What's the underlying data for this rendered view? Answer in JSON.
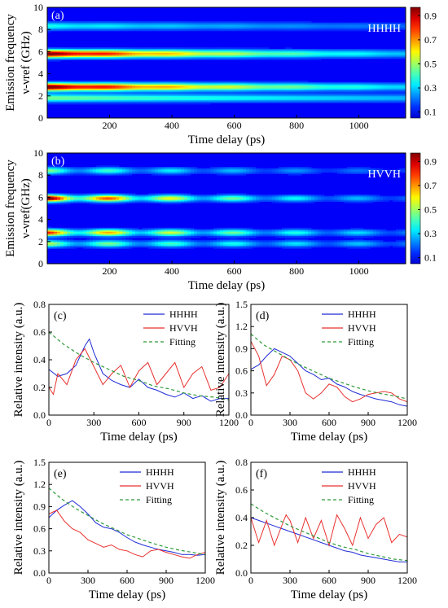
{
  "colorbar_ticks": [
    "0.9",
    "0.7",
    "0.5",
    "0.3",
    "0.1"
  ],
  "chart_data": [
    {
      "id": "a",
      "type": "heatmap",
      "panel_label": "(a)",
      "annotation": "HHHH",
      "xlabel": "Time delay (ps)",
      "ylabel_line1": "Emission frequency",
      "ylabel_line2": "ν-νref (GHz)",
      "xlim": [
        0,
        1150
      ],
      "ylim": [
        0,
        10
      ],
      "xticks": [
        200,
        400,
        600,
        800,
        1000
      ],
      "yticks": [
        0,
        2,
        4,
        6,
        8,
        10
      ],
      "bands": [
        {
          "freq": 1.8,
          "width": 0.35,
          "peak": 0.38,
          "decay": 0.0006,
          "mod": 0.0
        },
        {
          "freq": 2.8,
          "width": 0.35,
          "peak": 0.95,
          "decay": 0.0012,
          "mod": 0.1
        },
        {
          "freq": 5.8,
          "width": 0.35,
          "peak": 0.95,
          "decay": 0.0013,
          "mod": 0.1
        },
        {
          "freq": 8.3,
          "width": 0.35,
          "peak": 0.28,
          "decay": 0.0008,
          "mod": 0.1
        }
      ]
    },
    {
      "id": "b",
      "type": "heatmap",
      "panel_label": "(b)",
      "annotation": "HVVH",
      "xlabel": "Time delay (ps)",
      "ylabel_line1": "Emission frequency",
      "ylabel_line2": "ν-νref(GHz)",
      "xlim": [
        0,
        1150
      ],
      "ylim": [
        0,
        10
      ],
      "xticks": [
        200,
        400,
        600,
        800,
        1000
      ],
      "yticks": [
        0,
        2,
        4,
        6,
        8,
        10
      ],
      "bands": [
        {
          "freq": 1.8,
          "width": 0.3,
          "peak": 0.45,
          "decay": 0.0008,
          "mod": 0.6
        },
        {
          "freq": 2.8,
          "width": 0.3,
          "peak": 0.75,
          "decay": 0.0012,
          "mod": 0.6
        },
        {
          "freq": 5.9,
          "width": 0.3,
          "peak": 0.95,
          "decay": 0.0016,
          "mod": 0.6
        },
        {
          "freq": 8.4,
          "width": 0.3,
          "peak": 0.4,
          "decay": 0.0012,
          "mod": 0.6
        }
      ]
    },
    {
      "id": "c",
      "type": "line",
      "panel_label": "(c)",
      "xlabel": "Time delay (ps)",
      "ylabel": "Relative intensity (a.u.)",
      "xlim": [
        0,
        1200
      ],
      "ylim": [
        0,
        0.8
      ],
      "xticks": [
        0,
        300,
        600,
        900,
        1200
      ],
      "yticks": [
        "0.0",
        "0.2",
        "0.4",
        "0.6",
        "0.8"
      ],
      "series": [
        {
          "name": "HHHH",
          "color": "#1f2bd6",
          "x": [
            0,
            60,
            120,
            180,
            240,
            270,
            300,
            360,
            420,
            480,
            540,
            600,
            660,
            720,
            780,
            840,
            900,
            960,
            1020,
            1080,
            1140,
            1200
          ],
          "y": [
            0.33,
            0.28,
            0.3,
            0.36,
            0.5,
            0.55,
            0.45,
            0.3,
            0.25,
            0.22,
            0.2,
            0.26,
            0.2,
            0.18,
            0.15,
            0.13,
            0.16,
            0.12,
            0.14,
            0.1,
            0.12,
            0.12
          ]
        },
        {
          "name": "HVVH",
          "color": "#e8312e",
          "x": [
            0,
            30,
            60,
            120,
            180,
            240,
            300,
            360,
            420,
            480,
            540,
            600,
            660,
            720,
            780,
            840,
            900,
            960,
            1020,
            1080,
            1140,
            1200
          ],
          "y": [
            0.2,
            0.15,
            0.3,
            0.22,
            0.4,
            0.48,
            0.35,
            0.22,
            0.3,
            0.36,
            0.2,
            0.32,
            0.38,
            0.22,
            0.3,
            0.38,
            0.2,
            0.3,
            0.35,
            0.18,
            0.2,
            0.3
          ]
        },
        {
          "name": "Fitting",
          "color": "#2e9b3a",
          "dashed": true,
          "x": [
            0,
            100,
            200,
            300,
            400,
            500,
            600,
            700,
            800,
            900,
            1000,
            1100,
            1200
          ],
          "y": [
            0.6,
            0.51,
            0.44,
            0.38,
            0.33,
            0.28,
            0.25,
            0.21,
            0.19,
            0.16,
            0.14,
            0.13,
            0.11
          ]
        }
      ]
    },
    {
      "id": "d",
      "type": "line",
      "panel_label": "(d)",
      "xlabel": "Time delay (ps)",
      "ylabel": "Relative intensity (a.u.)",
      "xlim": [
        0,
        1200
      ],
      "ylim": [
        0,
        1.5
      ],
      "xticks": [
        0,
        300,
        600,
        900,
        1200
      ],
      "yticks": [
        "0.0",
        "0.3",
        "0.6",
        "0.9",
        "1.2",
        "1.5"
      ],
      "series": [
        {
          "name": "HHHH",
          "color": "#1f2bd6",
          "x": [
            0,
            60,
            120,
            180,
            240,
            300,
            360,
            420,
            480,
            540,
            600,
            660,
            720,
            780,
            840,
            900,
            960,
            1020,
            1080,
            1140,
            1200
          ],
          "y": [
            0.62,
            0.68,
            0.8,
            0.9,
            0.85,
            0.8,
            0.7,
            0.6,
            0.55,
            0.48,
            0.5,
            0.42,
            0.38,
            0.32,
            0.28,
            0.25,
            0.22,
            0.2,
            0.18,
            0.14,
            0.12
          ]
        },
        {
          "name": "HVVH",
          "color": "#e8312e",
          "x": [
            0,
            60,
            120,
            180,
            240,
            300,
            360,
            420,
            480,
            540,
            600,
            660,
            720,
            780,
            840,
            900,
            960,
            1020,
            1080,
            1140,
            1200
          ],
          "y": [
            1.0,
            0.8,
            0.4,
            0.55,
            0.8,
            0.75,
            0.6,
            0.3,
            0.22,
            0.3,
            0.42,
            0.38,
            0.25,
            0.18,
            0.22,
            0.28,
            0.3,
            0.32,
            0.3,
            0.22,
            0.18
          ]
        },
        {
          "name": "Fitting",
          "color": "#2e9b3a",
          "dashed": true,
          "x": [
            0,
            100,
            200,
            300,
            400,
            500,
            600,
            700,
            800,
            900,
            1000,
            1100,
            1200
          ],
          "y": [
            1.1,
            0.95,
            0.85,
            0.75,
            0.66,
            0.58,
            0.5,
            0.44,
            0.38,
            0.33,
            0.29,
            0.26,
            0.22
          ]
        }
      ]
    },
    {
      "id": "e",
      "type": "line",
      "panel_label": "(e)",
      "xlabel": "Time delay (ps)",
      "ylabel": "Relative intensity (a.u.)",
      "xlim": [
        0,
        1200
      ],
      "ylim": [
        0,
        1.5
      ],
      "xticks": [
        0,
        300,
        600,
        900,
        1200
      ],
      "yticks": [
        "0.0",
        "0.3",
        "0.6",
        "0.9",
        "1.2",
        "1.5"
      ],
      "series": [
        {
          "name": "HHHH",
          "color": "#1f2bd6",
          "x": [
            0,
            60,
            120,
            180,
            240,
            300,
            360,
            420,
            480,
            540,
            600,
            660,
            720,
            780,
            840,
            900,
            960,
            1020,
            1080,
            1140,
            1200
          ],
          "y": [
            0.75,
            0.85,
            0.92,
            0.98,
            0.9,
            0.8,
            0.68,
            0.62,
            0.6,
            0.55,
            0.48,
            0.42,
            0.38,
            0.35,
            0.32,
            0.3,
            0.28,
            0.25,
            0.25,
            0.24,
            0.25
          ]
        },
        {
          "name": "HVVH",
          "color": "#e8312e",
          "x": [
            0,
            60,
            120,
            180,
            240,
            300,
            360,
            420,
            480,
            540,
            600,
            660,
            720,
            780,
            840,
            900,
            960,
            1020,
            1080,
            1140,
            1200
          ],
          "y": [
            0.8,
            0.85,
            0.7,
            0.6,
            0.55,
            0.45,
            0.4,
            0.35,
            0.38,
            0.32,
            0.3,
            0.25,
            0.22,
            0.3,
            0.32,
            0.28,
            0.25,
            0.22,
            0.2,
            0.25,
            0.28
          ]
        },
        {
          "name": "Fitting",
          "color": "#2e9b3a",
          "dashed": true,
          "x": [
            0,
            100,
            200,
            300,
            400,
            500,
            600,
            700,
            800,
            900,
            1000,
            1100,
            1200
          ],
          "y": [
            1.15,
            1.0,
            0.88,
            0.78,
            0.68,
            0.6,
            0.52,
            0.46,
            0.4,
            0.35,
            0.31,
            0.28,
            0.25
          ]
        }
      ]
    },
    {
      "id": "f",
      "type": "line",
      "panel_label": "(f)",
      "xlabel": "Time delay (ps)",
      "ylabel": "Relative intensity (a.u.)",
      "xlim": [
        0,
        1200
      ],
      "ylim": [
        0,
        0.8
      ],
      "xticks": [
        0,
        300,
        600,
        900,
        1200
      ],
      "yticks": [
        "0.0",
        "0.2",
        "0.4",
        "0.6",
        "0.8"
      ],
      "series": [
        {
          "name": "HHHH",
          "color": "#1f2bd6",
          "x": [
            0,
            60,
            120,
            180,
            240,
            300,
            360,
            420,
            480,
            540,
            600,
            660,
            720,
            780,
            840,
            900,
            960,
            1020,
            1080,
            1140,
            1200
          ],
          "y": [
            0.4,
            0.38,
            0.36,
            0.34,
            0.32,
            0.3,
            0.28,
            0.26,
            0.24,
            0.22,
            0.2,
            0.18,
            0.16,
            0.15,
            0.13,
            0.12,
            0.11,
            0.1,
            0.09,
            0.08,
            0.08
          ]
        },
        {
          "name": "HVVH",
          "color": "#e8312e",
          "x": [
            0,
            60,
            120,
            180,
            240,
            270,
            300,
            360,
            420,
            480,
            540,
            600,
            660,
            720,
            780,
            840,
            900,
            960,
            1020,
            1080,
            1140,
            1200
          ],
          "y": [
            0.4,
            0.22,
            0.38,
            0.2,
            0.35,
            0.42,
            0.38,
            0.22,
            0.4,
            0.25,
            0.38,
            0.2,
            0.42,
            0.32,
            0.2,
            0.4,
            0.25,
            0.35,
            0.4,
            0.22,
            0.28,
            0.26
          ]
        },
        {
          "name": "Fitting",
          "color": "#2e9b3a",
          "dashed": true,
          "x": [
            0,
            100,
            200,
            300,
            400,
            500,
            600,
            700,
            800,
            900,
            1000,
            1100,
            1200
          ],
          "y": [
            0.5,
            0.44,
            0.39,
            0.34,
            0.3,
            0.26,
            0.22,
            0.19,
            0.17,
            0.14,
            0.12,
            0.1,
            0.09
          ]
        }
      ]
    }
  ]
}
